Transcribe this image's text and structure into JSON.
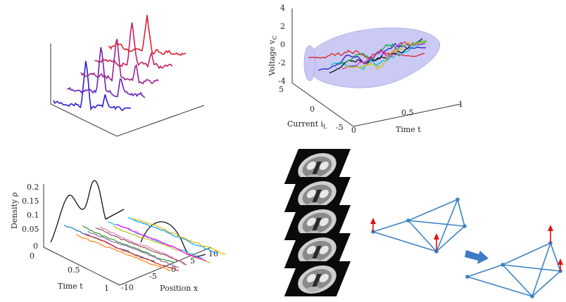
{
  "panels": {
    "voltage_current": {
      "zlabel": "Voltage v",
      "zlabel_sub": "C",
      "z_ticks": [
        "4",
        "2",
        "0",
        "-2",
        "-4"
      ],
      "y_label": "Current i",
      "y_label_sub": "L",
      "y_ticks": [
        "5",
        "0",
        "-5"
      ],
      "x_label": "Time t",
      "x_ticks": [
        "0",
        "0.5",
        "1"
      ],
      "series_colors": [
        "#e0201f",
        "#1f1fd0",
        "#00bcd4",
        "#111111",
        "#1aa14a",
        "#e01fc9",
        "#c8c800"
      ]
    },
    "density": {
      "ylabel": "Density ρ",
      "y_ticks": [
        "0.2",
        "0.15",
        "0.1",
        "0.05",
        "0",
        "0"
      ],
      "t_label": "Time t",
      "t_ticks": [
        "0.5",
        "1"
      ],
      "x_label": "Position x",
      "x_ticks": [
        "-10",
        "-5",
        "0",
        "5",
        "10"
      ],
      "series_colors": [
        "#1f77b4",
        "#ff7f0e",
        "#2ca02c",
        "#d62728",
        "#9467bd",
        "#8c564b",
        "#e377c2",
        "#17becf",
        "#bcbd22",
        "#ff00ff",
        "#00a2ff",
        "#e6b800"
      ]
    },
    "spike_series": {
      "colors": [
        "#2a1fd6",
        "#6a1fb8",
        "#9a1f90",
        "#c41f60",
        "#e01f2e"
      ]
    },
    "mri": {
      "slices": 5
    },
    "graphs": {
      "node_color": "#3b82c4",
      "arrow_color": "#e01010",
      "big_arrow_color": "#3d7bc4"
    }
  }
}
